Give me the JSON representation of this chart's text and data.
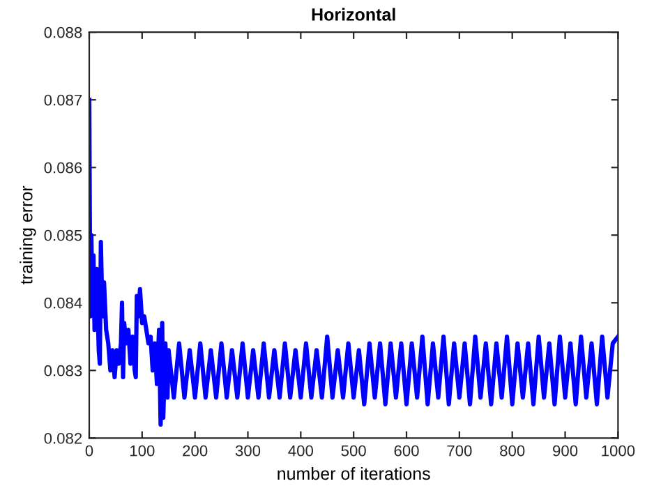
{
  "chart_data": {
    "type": "line",
    "title": "Horizontal",
    "xlabel": "number of iterations",
    "ylabel": "training error",
    "xlim": [
      0,
      1000
    ],
    "xticks": [
      0,
      100,
      200,
      300,
      400,
      500,
      600,
      700,
      800,
      900,
      1000
    ],
    "ylim": [
      0.082,
      0.088
    ],
    "yticks": [
      0.082,
      0.083,
      0.084,
      0.085,
      0.086,
      0.087,
      0.088
    ],
    "grid": false,
    "marker": "none",
    "line_style": "solid",
    "series": [
      {
        "color": "#0000ff",
        "x": [
          0,
          2,
          4,
          6,
          8,
          10,
          14,
          18,
          20,
          22,
          25,
          28,
          32,
          36,
          40,
          44,
          48,
          52,
          56,
          60,
          62,
          64,
          66,
          70,
          74,
          78,
          82,
          86,
          88,
          90,
          93,
          96,
          100,
          104,
          108,
          112,
          116,
          120,
          124,
          128,
          132,
          135,
          138,
          140,
          144,
          148,
          150,
          160,
          170,
          180,
          190,
          200,
          210,
          220,
          230,
          240,
          250,
          260,
          270,
          280,
          290,
          300,
          310,
          320,
          330,
          340,
          350,
          360,
          370,
          380,
          390,
          400,
          410,
          420,
          430,
          440,
          450,
          460,
          470,
          480,
          490,
          500,
          510,
          520,
          530,
          540,
          550,
          560,
          570,
          580,
          590,
          600,
          610,
          620,
          630,
          640,
          650,
          660,
          670,
          680,
          690,
          700,
          710,
          720,
          730,
          740,
          750,
          760,
          770,
          780,
          790,
          800,
          810,
          820,
          830,
          840,
          850,
          860,
          870,
          880,
          890,
          900,
          910,
          920,
          930,
          940,
          950,
          960,
          970,
          980,
          990,
          1000
        ],
        "values": [
          0.087,
          0.0838,
          0.085,
          0.084,
          0.0847,
          0.0836,
          0.0845,
          0.0833,
          0.0831,
          0.0849,
          0.0838,
          0.0843,
          0.0836,
          0.0834,
          0.083,
          0.0833,
          0.0829,
          0.0833,
          0.0831,
          0.0834,
          0.084,
          0.0829,
          0.0837,
          0.0834,
          0.0836,
          0.0831,
          0.0835,
          0.083,
          0.0829,
          0.0841,
          0.0838,
          0.0842,
          0.0837,
          0.0838,
          0.0836,
          0.0834,
          0.0835,
          0.083,
          0.0834,
          0.0828,
          0.0836,
          0.0822,
          0.0837,
          0.0823,
          0.0834,
          0.0826,
          0.0833,
          0.0826,
          0.0834,
          0.0826,
          0.0833,
          0.0826,
          0.0834,
          0.0826,
          0.0833,
          0.0826,
          0.0834,
          0.0826,
          0.0833,
          0.0826,
          0.0834,
          0.0826,
          0.0833,
          0.0826,
          0.0834,
          0.0826,
          0.0833,
          0.0826,
          0.0834,
          0.0826,
          0.0833,
          0.0826,
          0.0834,
          0.0826,
          0.0833,
          0.0826,
          0.0835,
          0.0826,
          0.0833,
          0.0826,
          0.0834,
          0.0826,
          0.0833,
          0.0825,
          0.0834,
          0.0826,
          0.0834,
          0.0825,
          0.0834,
          0.0826,
          0.0834,
          0.0825,
          0.0834,
          0.0826,
          0.0835,
          0.0825,
          0.0834,
          0.0826,
          0.0835,
          0.0825,
          0.0834,
          0.0826,
          0.0834,
          0.0825,
          0.0835,
          0.0826,
          0.0834,
          0.0825,
          0.0834,
          0.0826,
          0.0835,
          0.0825,
          0.0834,
          0.0826,
          0.0834,
          0.0825,
          0.0835,
          0.0826,
          0.0834,
          0.0825,
          0.0835,
          0.0826,
          0.0834,
          0.0825,
          0.0835,
          0.0826,
          0.0834,
          0.0825,
          0.0835,
          0.0826,
          0.0834,
          0.0835
        ]
      }
    ]
  }
}
